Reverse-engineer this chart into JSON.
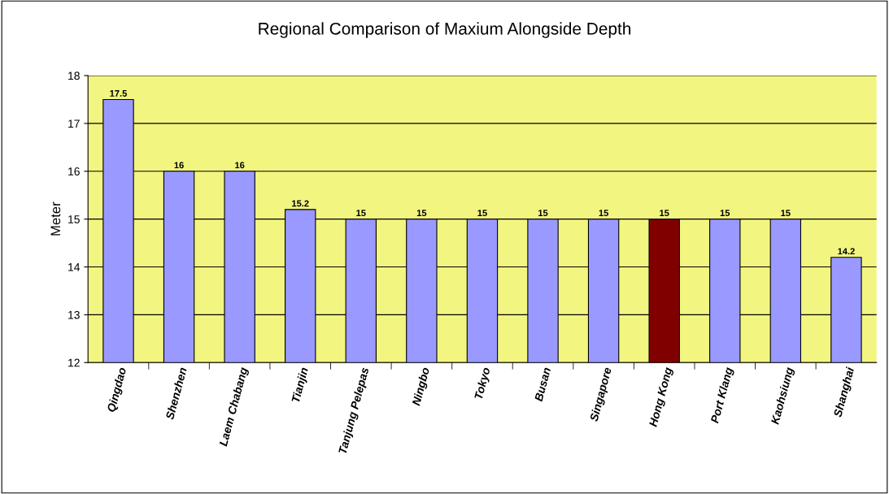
{
  "chart_data": {
    "type": "bar",
    "title": "Regional Comparison of Maxium Alongside Depth",
    "ylabel": "Meter",
    "categories": [
      "Qingdao",
      "Shenzhen",
      "Laem Chabang",
      "Tianjin",
      "Tanjung Pelepas",
      "Ningbo",
      "Tokyo",
      "Busan",
      "Singapore",
      "Hong Kong",
      "Port Klang",
      "Kaohsiung",
      "Shanghai"
    ],
    "values": [
      17.5,
      16,
      16,
      15.2,
      15,
      15,
      15,
      15,
      15,
      15,
      15,
      15,
      14.2
    ],
    "colors": [
      "#9999ff",
      "#9999ff",
      "#9999ff",
      "#9999ff",
      "#9999ff",
      "#9999ff",
      "#9999ff",
      "#9999ff",
      "#9999ff",
      "#800000",
      "#9999ff",
      "#9999ff",
      "#9999ff"
    ],
    "ylim": [
      12,
      18
    ],
    "yticks": [
      12,
      13,
      14,
      15,
      16,
      17,
      18
    ],
    "grid": "y",
    "data_labels": true
  }
}
